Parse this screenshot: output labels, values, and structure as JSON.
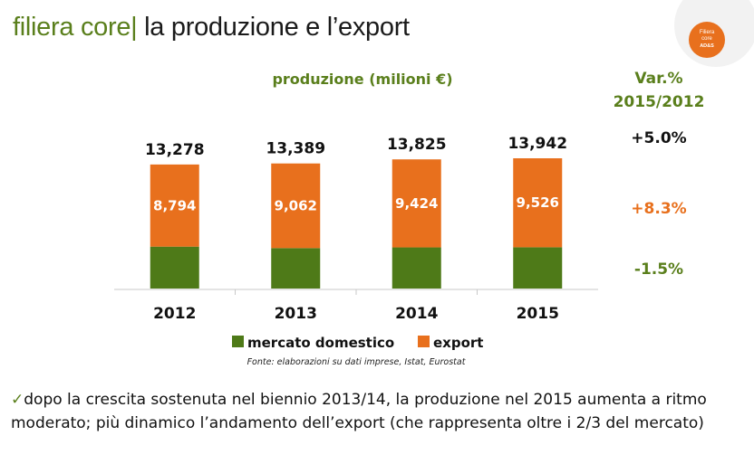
{
  "slide": {
    "title_accent": "filiera core",
    "title_bar": "|",
    "title_rest": " la produzione e l’export"
  },
  "logo": {
    "ring_text": "",
    "badge_line1": "Filiera",
    "badge_line2": "core",
    "badge_brand": "AD&S"
  },
  "chart_data": {
    "type": "bar",
    "stacked": true,
    "title": "produzione (milioni €)",
    "categories": [
      "2012",
      "2013",
      "2014",
      "2015"
    ],
    "series": [
      {
        "name": "mercato domestico",
        "color": "#4e7a18",
        "values": [
          4484,
          4327,
          4401,
          4416
        ]
      },
      {
        "name": "export",
        "color": "#e8701d",
        "values": [
          8794,
          9062,
          9424,
          9526
        ]
      }
    ],
    "totals": [
      13278,
      13389,
      13825,
      13942
    ],
    "total_labels": [
      "13,278",
      "13,389",
      "13,825",
      "13,942"
    ],
    "export_labels": [
      "8,794",
      "9,062",
      "9,424",
      "9,526"
    ],
    "ylim": [
      0,
      13942
    ],
    "grid": false,
    "legend_position": "bottom",
    "source": "Fonte: elaborazioni su dati imprese, Istat, Eurostat"
  },
  "variation": {
    "header_line1": "Var.%",
    "header_line2": "2015/2012",
    "total": {
      "value": "+5.0%",
      "color": "#111111"
    },
    "export": {
      "value": "+8.3%",
      "color": "#e8701d"
    },
    "domestic": {
      "value": "-1.5%",
      "color": "#5a7f1c"
    }
  },
  "note": {
    "check": "✓",
    "text": "dopo la crescita sostenuta nel biennio 2013/14, la produzione nel 2015 aumenta a ritmo moderato; più dinamico l’andamento dell’export (che rappresenta oltre i 2/3 del mercato)"
  }
}
